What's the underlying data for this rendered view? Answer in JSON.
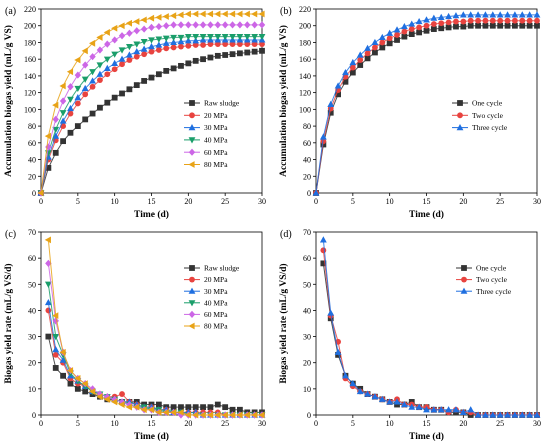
{
  "chart_data": [
    {
      "panel_label": "(a)",
      "type": "line",
      "xlabel": "Time (d)",
      "ylabel": "Accumulation biogas yield (mL/g VS)",
      "xlim": [
        0,
        30
      ],
      "ylim": [
        0,
        220
      ],
      "xticks": [
        0,
        5,
        10,
        15,
        20,
        25,
        30
      ],
      "yticks": [
        0,
        20,
        40,
        60,
        80,
        100,
        120,
        140,
        160,
        180,
        200,
        220
      ],
      "legend": "center-right",
      "x": [
        0,
        1,
        2,
        3,
        4,
        5,
        6,
        7,
        8,
        9,
        10,
        11,
        12,
        13,
        14,
        15,
        16,
        17,
        18,
        19,
        20,
        21,
        22,
        23,
        24,
        25,
        26,
        27,
        28,
        29,
        30
      ],
      "series": [
        {
          "name": "Raw sludge",
          "color": "#333333",
          "marker": "square",
          "values": [
            0,
            30,
            48,
            62,
            72,
            80,
            88,
            95,
            102,
            108,
            114,
            119,
            124,
            129,
            134,
            138,
            142,
            146,
            149,
            152,
            155,
            158,
            160,
            162,
            164,
            165,
            166,
            167,
            168,
            169,
            170
          ]
        },
        {
          "name": "20 MPa",
          "color": "#e8433f",
          "marker": "circle",
          "values": [
            0,
            40,
            63,
            80,
            95,
            107,
            118,
            127,
            135,
            142,
            148,
            154,
            159,
            163,
            166,
            169,
            171,
            173,
            174,
            175,
            176,
            177,
            177,
            178,
            178,
            178,
            178,
            178,
            178,
            178,
            178
          ]
        },
        {
          "name": "30 MPa",
          "color": "#1f6fe0",
          "marker": "triangle-up",
          "values": [
            0,
            43,
            68,
            86,
            101,
            114,
            125,
            134,
            142,
            149,
            155,
            160,
            165,
            169,
            172,
            175,
            177,
            179,
            180,
            181,
            182,
            182,
            183,
            183,
            183,
            183,
            183,
            183,
            183,
            183,
            183
          ]
        },
        {
          "name": "40 MPa",
          "color": "#1a9e6a",
          "marker": "triangle-down",
          "values": [
            0,
            48,
            76,
            96,
            112,
            125,
            136,
            145,
            153,
            160,
            166,
            171,
            175,
            178,
            181,
            183,
            184,
            185,
            186,
            186,
            187,
            187,
            187,
            187,
            187,
            187,
            187,
            187,
            187,
            187,
            187
          ]
        },
        {
          "name": "60 MPa",
          "color": "#cc66e6",
          "marker": "diamond",
          "values": [
            0,
            55,
            88,
            110,
            127,
            141,
            153,
            163,
            171,
            178,
            183,
            188,
            191,
            194,
            196,
            198,
            199,
            200,
            201,
            201,
            201,
            201,
            201,
            201,
            201,
            201,
            201,
            201,
            201,
            201,
            201
          ]
        },
        {
          "name": "80 MPa",
          "color": "#e8a317",
          "marker": "triangle-left",
          "values": [
            0,
            68,
            105,
            128,
            145,
            159,
            170,
            179,
            186,
            192,
            197,
            200,
            203,
            205,
            207,
            209,
            210,
            211,
            212,
            213,
            214,
            214,
            214,
            214,
            214,
            214,
            214,
            214,
            214,
            214,
            214
          ]
        }
      ]
    },
    {
      "panel_label": "(b)",
      "type": "line",
      "xlabel": "Time (d)",
      "ylabel": "Accumulation biogas yield (mL/g VS)",
      "xlim": [
        0,
        30
      ],
      "ylim": [
        0,
        220
      ],
      "xticks": [
        0,
        5,
        10,
        15,
        20,
        25,
        30
      ],
      "yticks": [
        0,
        20,
        40,
        60,
        80,
        100,
        120,
        140,
        160,
        180,
        200,
        220
      ],
      "legend": "center-right",
      "x": [
        0,
        1,
        2,
        3,
        4,
        5,
        6,
        7,
        8,
        9,
        10,
        11,
        12,
        13,
        14,
        15,
        16,
        17,
        18,
        19,
        20,
        21,
        22,
        23,
        24,
        25,
        26,
        27,
        28,
        29,
        30
      ],
      "series": [
        {
          "name": "One cycle",
          "color": "#333333",
          "marker": "square",
          "values": [
            0,
            58,
            96,
            118,
            133,
            144,
            153,
            161,
            168,
            174,
            179,
            183,
            187,
            190,
            192,
            194,
            196,
            197,
            198,
            199,
            199,
            200,
            200,
            200,
            200,
            200,
            200,
            200,
            200,
            200,
            200
          ]
        },
        {
          "name": "Two cycle",
          "color": "#e8433f",
          "marker": "circle",
          "values": [
            0,
            62,
            101,
            123,
            139,
            150,
            159,
            167,
            174,
            180,
            185,
            189,
            193,
            196,
            198,
            200,
            202,
            203,
            204,
            205,
            205,
            206,
            206,
            206,
            206,
            206,
            206,
            206,
            206,
            206,
            206
          ]
        },
        {
          "name": "Three cycle",
          "color": "#1f6fe0",
          "marker": "triangle-up",
          "values": [
            0,
            67,
            106,
            128,
            144,
            156,
            165,
            173,
            180,
            186,
            191,
            195,
            199,
            202,
            205,
            207,
            209,
            210,
            211,
            212,
            213,
            213,
            213,
            213,
            213,
            213,
            213,
            213,
            213,
            213,
            213
          ]
        }
      ]
    },
    {
      "panel_label": "(c)",
      "type": "line",
      "xlabel": "Time (d)",
      "ylabel": "Biogas yield rate (mL/g VS/d)",
      "xlim": [
        0,
        30
      ],
      "ylim": [
        0,
        70
      ],
      "xticks": [
        0,
        5,
        10,
        15,
        20,
        25,
        30
      ],
      "yticks": [
        0,
        10,
        20,
        30,
        40,
        50,
        60,
        70
      ],
      "legend": "top-right",
      "x": [
        1,
        2,
        3,
        4,
        5,
        6,
        7,
        8,
        9,
        10,
        11,
        12,
        13,
        14,
        15,
        16,
        17,
        18,
        19,
        20,
        21,
        22,
        23,
        24,
        25,
        26,
        27,
        28,
        29,
        30
      ],
      "series": [
        {
          "name": "Raw sludge",
          "color": "#333333",
          "marker": "square",
          "values": [
            30,
            18,
            15,
            12,
            10,
            9,
            8,
            7,
            6,
            6,
            5,
            5,
            5,
            4,
            4,
            4,
            3,
            3,
            3,
            3,
            3,
            3,
            3,
            4,
            3,
            2,
            2,
            1,
            1,
            1
          ]
        },
        {
          "name": "20 MPa",
          "color": "#e8433f",
          "marker": "circle",
          "values": [
            40,
            23,
            20,
            14,
            12,
            11,
            9,
            8,
            7,
            7,
            8,
            5,
            4,
            3,
            3,
            2,
            2,
            1,
            1,
            1,
            1,
            1,
            1,
            1,
            0,
            0,
            0,
            0,
            0,
            0
          ]
        },
        {
          "name": "30 MPa",
          "color": "#1f6fe0",
          "marker": "triangle-up",
          "values": [
            43,
            25,
            21,
            15,
            13,
            11,
            9,
            8,
            7,
            6,
            5,
            5,
            4,
            3,
            3,
            2,
            2,
            1,
            1,
            1,
            1,
            0,
            0,
            0,
            0,
            0,
            0,
            0,
            0,
            0
          ]
        },
        {
          "name": "40 MPa",
          "color": "#1a9e6a",
          "marker": "triangle-down",
          "values": [
            50,
            30,
            23,
            16,
            13,
            11,
            9,
            8,
            7,
            6,
            5,
            4,
            3,
            3,
            2,
            2,
            1,
            1,
            1,
            0,
            0,
            0,
            0,
            0,
            0,
            0,
            0,
            0,
            0,
            0
          ]
        },
        {
          "name": "60 MPa",
          "color": "#cc66e6",
          "marker": "diamond",
          "values": [
            58,
            36,
            24,
            17,
            14,
            12,
            10,
            8,
            7,
            6,
            5,
            4,
            3,
            2,
            2,
            1,
            1,
            1,
            0,
            0,
            0,
            0,
            0,
            0,
            0,
            0,
            0,
            0,
            0,
            0
          ]
        },
        {
          "name": "80 MPa",
          "color": "#e8a317",
          "marker": "triangle-left",
          "values": [
            67,
            38,
            24,
            17,
            14,
            12,
            9,
            7,
            6,
            5,
            4,
            3,
            3,
            2,
            2,
            1,
            1,
            1,
            1,
            0,
            0,
            0,
            0,
            0,
            0,
            0,
            0,
            0,
            0,
            0
          ]
        }
      ]
    },
    {
      "panel_label": "(d)",
      "type": "line",
      "xlabel": "Time (d)",
      "ylabel": "Biogas yield rate (mL/g VS/d)",
      "xlim": [
        0,
        30
      ],
      "ylim": [
        0,
        70
      ],
      "xticks": [
        0,
        5,
        10,
        15,
        20,
        25,
        30
      ],
      "yticks": [
        0,
        10,
        20,
        30,
        40,
        50,
        60,
        70
      ],
      "legend": "top-right",
      "x": [
        1,
        2,
        3,
        4,
        5,
        6,
        7,
        8,
        9,
        10,
        11,
        12,
        13,
        14,
        15,
        16,
        17,
        18,
        19,
        20,
        21,
        22,
        23,
        24,
        25,
        26,
        27,
        28,
        29,
        30
      ],
      "series": [
        {
          "name": "One cycle",
          "color": "#333333",
          "marker": "square",
          "values": [
            58,
            37,
            23,
            15,
            12,
            10,
            8,
            7,
            6,
            5,
            4,
            4,
            5,
            3,
            3,
            2,
            2,
            1,
            1,
            1,
            0,
            0,
            0,
            0,
            0,
            0,
            0,
            0,
            0,
            0
          ]
        },
        {
          "name": "Two cycle",
          "color": "#e8433f",
          "marker": "circle",
          "values": [
            63,
            38,
            28,
            14,
            11,
            9,
            8,
            7,
            6,
            5,
            6,
            4,
            4,
            3,
            3,
            2,
            2,
            1,
            2,
            1,
            1,
            0,
            0,
            0,
            0,
            0,
            0,
            0,
            0,
            0
          ]
        },
        {
          "name": "Three cycle",
          "color": "#1f6fe0",
          "marker": "triangle-up",
          "values": [
            67,
            39,
            24,
            15,
            12,
            9,
            8,
            7,
            6,
            5,
            5,
            4,
            3,
            3,
            2,
            2,
            2,
            2,
            2,
            1,
            2,
            0,
            0,
            0,
            0,
            0,
            0,
            0,
            0,
            0
          ]
        }
      ]
    }
  ]
}
